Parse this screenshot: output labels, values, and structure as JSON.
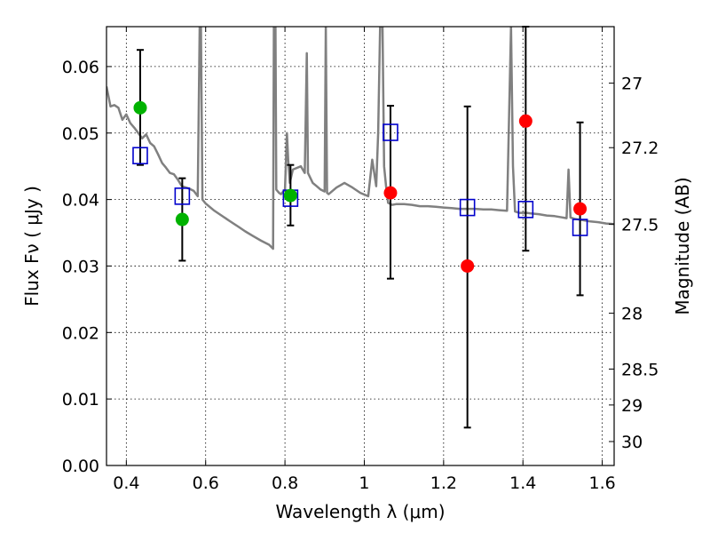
{
  "chart_data": {
    "type": "scatter",
    "xlabel": "Wavelength  λ (μm)",
    "ylabel": "Flux  Fν  ( μJy )",
    "y2label": "Magnitude (AB)",
    "xlim": [
      0.35,
      1.63
    ],
    "ylim": [
      0.0,
      0.066
    ],
    "grid": true,
    "x_ticks": [
      0.4,
      0.6,
      0.8,
      1.0,
      1.2,
      1.4,
      1.6
    ],
    "x_tick_labels": [
      "0.4",
      "0.6",
      "0.8",
      "1",
      "1.2",
      "1.4",
      "1.6"
    ],
    "y_ticks": [
      0.0,
      0.01,
      0.02,
      0.03,
      0.04,
      0.05,
      0.06
    ],
    "y_tick_labels": [
      "0.00",
      "0.01",
      "0.02",
      "0.03",
      "0.04",
      "0.05",
      "0.06"
    ],
    "y2_ticks": [
      {
        "label": "27",
        "flux": 0.0575
      },
      {
        "label": "27.2",
        "flux": 0.0478
      },
      {
        "label": "27.5",
        "flux": 0.0363
      },
      {
        "label": "28",
        "flux": 0.0229
      },
      {
        "label": "28.5",
        "flux": 0.0145
      },
      {
        "label": "29",
        "flux": 0.0091
      },
      {
        "label": "30",
        "flux": 0.0036
      }
    ],
    "colors": {
      "sed": "#808080",
      "model": "#0000cc",
      "detection": "#00b200",
      "nondetection": "#ff0000",
      "errorbar": "#000000"
    },
    "observed": [
      {
        "x": 0.435,
        "y": 0.0538,
        "err_low": 0.0452,
        "err_high": 0.0625,
        "kind": "detection"
      },
      {
        "x": 0.541,
        "y": 0.037,
        "err_low": 0.0308,
        "err_high": 0.0432,
        "kind": "detection"
      },
      {
        "x": 0.814,
        "y": 0.0406,
        "err_low": 0.0361,
        "err_high": 0.0452,
        "kind": "detection"
      },
      {
        "x": 1.066,
        "y": 0.041,
        "err_low": 0.0281,
        "err_high": 0.0541,
        "kind": "nondetection"
      },
      {
        "x": 1.26,
        "y": 0.03,
        "err_low": 0.0057,
        "err_high": 0.054,
        "kind": "nondetection"
      },
      {
        "x": 1.407,
        "y": 0.0518,
        "err_low": 0.0323,
        "err_high": 0.066,
        "kind": "nondetection"
      },
      {
        "x": 1.544,
        "y": 0.0386,
        "err_low": 0.0256,
        "err_high": 0.0516,
        "kind": "nondetection"
      }
    ],
    "model_photometry": [
      {
        "x": 0.435,
        "y": 0.0466
      },
      {
        "x": 0.541,
        "y": 0.0405
      },
      {
        "x": 0.814,
        "y": 0.0402
      },
      {
        "x": 1.066,
        "y": 0.0501
      },
      {
        "x": 1.26,
        "y": 0.0388
      },
      {
        "x": 1.407,
        "y": 0.0385
      },
      {
        "x": 1.544,
        "y": 0.0358
      }
    ],
    "sed_curve": {
      "x": [
        0.35,
        0.36,
        0.37,
        0.38,
        0.39,
        0.4,
        0.41,
        0.42,
        0.43,
        0.44,
        0.45,
        0.46,
        0.47,
        0.48,
        0.49,
        0.5,
        0.51,
        0.52,
        0.53,
        0.54,
        0.55,
        0.56,
        0.57,
        0.58,
        0.585,
        0.588,
        0.592,
        0.6,
        0.62,
        0.64,
        0.66,
        0.68,
        0.7,
        0.72,
        0.74,
        0.76,
        0.77,
        0.772,
        0.776,
        0.778,
        0.785,
        0.79,
        0.8,
        0.805,
        0.808,
        0.812,
        0.82,
        0.84,
        0.85,
        0.855,
        0.858,
        0.862,
        0.87,
        0.88,
        0.89,
        0.9,
        0.903,
        0.906,
        0.91,
        0.93,
        0.95,
        0.97,
        0.99,
        1.01,
        1.02,
        1.03,
        1.035,
        1.04,
        1.046,
        1.05,
        1.055,
        1.06,
        1.07,
        1.08,
        1.1,
        1.12,
        1.14,
        1.16,
        1.18,
        1.2,
        1.22,
        1.24,
        1.26,
        1.28,
        1.3,
        1.32,
        1.34,
        1.36,
        1.37,
        1.375,
        1.38,
        1.39,
        1.4,
        1.41,
        1.42,
        1.44,
        1.46,
        1.48,
        1.5,
        1.51,
        1.515,
        1.52,
        1.53,
        1.55,
        1.57,
        1.59,
        1.61,
        1.63
      ],
      "y": [
        0.057,
        0.054,
        0.0542,
        0.0538,
        0.052,
        0.0528,
        0.0515,
        0.0508,
        0.05,
        0.0492,
        0.0498,
        0.0485,
        0.048,
        0.0468,
        0.0455,
        0.0448,
        0.044,
        0.0438,
        0.043,
        0.042,
        0.0418,
        0.0416,
        0.0413,
        0.0405,
        0.066,
        0.066,
        0.04,
        0.0394,
        0.0384,
        0.0376,
        0.0368,
        0.036,
        0.0352,
        0.0345,
        0.0338,
        0.0332,
        0.0326,
        0.066,
        0.066,
        0.0415,
        0.041,
        0.0408,
        0.0415,
        0.05,
        0.046,
        0.0425,
        0.0445,
        0.045,
        0.044,
        0.062,
        0.044,
        0.0435,
        0.0425,
        0.042,
        0.0415,
        0.0412,
        0.066,
        0.041,
        0.0408,
        0.0418,
        0.0425,
        0.0418,
        0.041,
        0.0405,
        0.046,
        0.042,
        0.05,
        0.066,
        0.066,
        0.045,
        0.042,
        0.0395,
        0.0392,
        0.0393,
        0.0393,
        0.0392,
        0.039,
        0.039,
        0.0389,
        0.0388,
        0.0387,
        0.0386,
        0.0386,
        0.0386,
        0.0385,
        0.0385,
        0.0384,
        0.0383,
        0.066,
        0.045,
        0.0382,
        0.038,
        0.038,
        0.038,
        0.0379,
        0.0378,
        0.0376,
        0.0375,
        0.0373,
        0.0372,
        0.0445,
        0.0373,
        0.0371,
        0.0369,
        0.0367,
        0.0366,
        0.0364,
        0.0363
      ]
    }
  }
}
